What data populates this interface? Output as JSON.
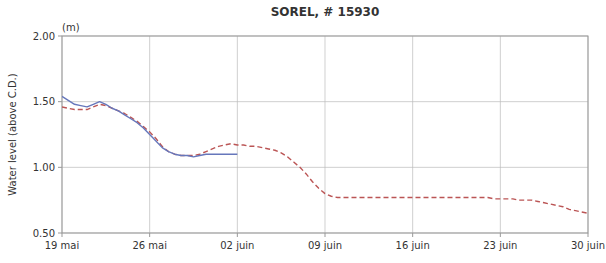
{
  "chart_data": {
    "type": "line",
    "title": "SOREL, # 15930",
    "y_label": "Water level (above C.D.)",
    "annotations": [
      "(m)"
    ],
    "background_color": "#ffffff",
    "grid": true,
    "grid_color": "#bbbbbb",
    "xlim": [
      0,
      42
    ],
    "xticks": [
      {
        "value": 0,
        "label": "19 mai"
      },
      {
        "value": 7,
        "label": "26 mai"
      },
      {
        "value": 14,
        "label": "02 juin"
      },
      {
        "value": 21,
        "label": "09 juin"
      },
      {
        "value": 28,
        "label": "16 juin"
      },
      {
        "value": 35,
        "label": "23 juin"
      },
      {
        "value": 42,
        "label": "30 juin"
      }
    ],
    "ylim": [
      0.5,
      2.0
    ],
    "yticks": [
      {
        "value": 0.5,
        "label": "0.50"
      },
      {
        "value": 1,
        "label": "1.00"
      },
      {
        "value": 1.5,
        "label": "1.50"
      },
      {
        "value": 2,
        "label": "2.00"
      }
    ],
    "series": [
      {
        "color": "#bb5555",
        "line_style": "dashed",
        "x": [
          0,
          0.5,
          1,
          1.5,
          2,
          2.5,
          3,
          3.5,
          4,
          4.5,
          5,
          5.5,
          6,
          6.5,
          7,
          7.5,
          8,
          8.5,
          9,
          9.5,
          10,
          10.5,
          11,
          11.5,
          12,
          12.5,
          13,
          13.5,
          14,
          14.5,
          15,
          15.5,
          16,
          16.5,
          17,
          17.5,
          18,
          18.5,
          19,
          19.5,
          20,
          20.5,
          21,
          21.5,
          22,
          22.5,
          23,
          23.5,
          24,
          24.5,
          25,
          25.5,
          26,
          26.5,
          27,
          27.5,
          28,
          28.5,
          29,
          29.5,
          30,
          30.5,
          31,
          31.5,
          32,
          32.5,
          33,
          33.5,
          34,
          34.5,
          35,
          35.5,
          36,
          36.5,
          37,
          37.5,
          38,
          38.5,
          39,
          39.5,
          40,
          40.5,
          41,
          41.5,
          42
        ],
        "values": [
          1.46,
          1.45,
          1.44,
          1.44,
          1.44,
          1.46,
          1.48,
          1.47,
          1.45,
          1.43,
          1.41,
          1.38,
          1.35,
          1.31,
          1.27,
          1.22,
          1.16,
          1.12,
          1.1,
          1.09,
          1.09,
          1.09,
          1.1,
          1.12,
          1.14,
          1.16,
          1.17,
          1.18,
          1.17,
          1.17,
          1.16,
          1.16,
          1.15,
          1.14,
          1.13,
          1.11,
          1.08,
          1.04,
          1.0,
          0.95,
          0.89,
          0.84,
          0.8,
          0.78,
          0.77,
          0.77,
          0.77,
          0.77,
          0.77,
          0.77,
          0.77,
          0.77,
          0.77,
          0.77,
          0.77,
          0.77,
          0.77,
          0.77,
          0.77,
          0.77,
          0.77,
          0.77,
          0.77,
          0.77,
          0.77,
          0.77,
          0.77,
          0.77,
          0.77,
          0.76,
          0.76,
          0.76,
          0.76,
          0.75,
          0.75,
          0.75,
          0.74,
          0.73,
          0.72,
          0.71,
          0.7,
          0.68,
          0.67,
          0.66,
          0.65
        ]
      },
      {
        "color": "#6677bb",
        "line_style": "solid",
        "x": [
          0,
          0.5,
          1,
          1.5,
          2,
          2.5,
          3,
          3.5,
          4,
          4.5,
          5,
          5.5,
          6,
          6.5,
          7,
          7.5,
          8,
          8.5,
          9,
          9.5,
          10,
          10.5,
          11,
          11.5,
          12,
          12.5,
          13,
          13.5,
          14
        ],
        "values": [
          1.54,
          1.51,
          1.48,
          1.47,
          1.46,
          1.48,
          1.5,
          1.48,
          1.45,
          1.43,
          1.4,
          1.37,
          1.34,
          1.3,
          1.25,
          1.2,
          1.15,
          1.12,
          1.1,
          1.09,
          1.09,
          1.08,
          1.09,
          1.1,
          1.1,
          1.1,
          1.1,
          1.1,
          1.1
        ]
      }
    ]
  }
}
